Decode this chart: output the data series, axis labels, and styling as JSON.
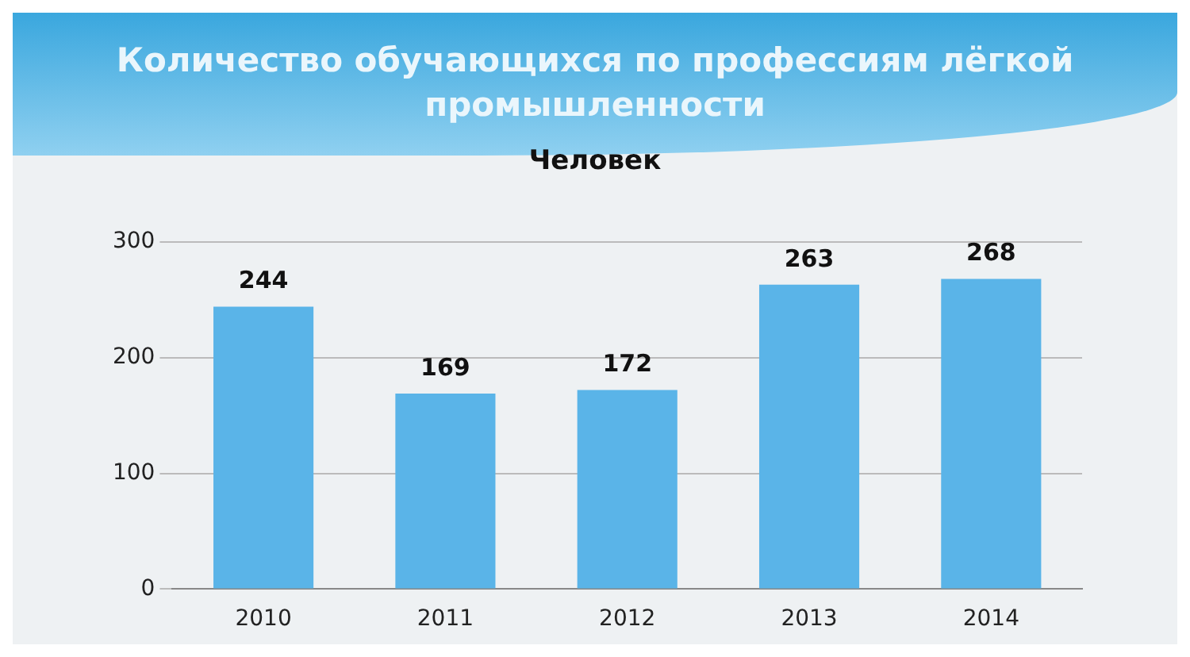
{
  "chart_data": {
    "type": "bar",
    "title": "Количество обучающихся по профессиям лёгкой промышленности",
    "subtitle": "Человек",
    "categories": [
      "2010",
      "2011",
      "2012",
      "2013",
      "2014"
    ],
    "values": [
      244,
      169,
      172,
      263,
      268
    ],
    "color": "#5ab4e8",
    "ylim": [
      0,
      300
    ],
    "yticks": [
      0,
      100,
      200,
      300
    ],
    "grid": "y",
    "legend": false,
    "data_labels": true
  }
}
